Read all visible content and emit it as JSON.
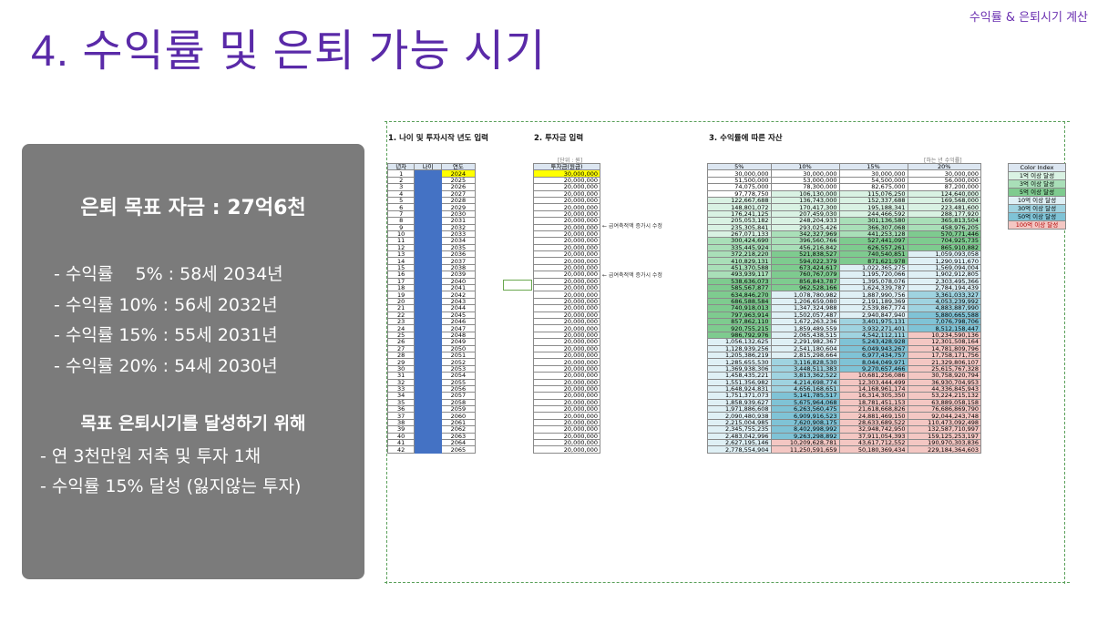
{
  "header": {
    "top_right": "수익률 & 은퇴시기 계산",
    "title": "4. 수익률 및 은퇴 가능 시기"
  },
  "panel": {
    "goal": "은퇴 목표 자금 : 27억6천",
    "rates": [
      "- 수익률    5% : 58세 2034년",
      "- 수익률 10% : 56세 2032년",
      "- 수익률 15% : 55세 2031년",
      "- 수익률 20% : 54세 2030년"
    ],
    "subhead": "목표 은퇴시기를 달성하기 위해",
    "plans": [
      "- 연 3천만원 저축 및 투자 1채",
      "- 수익률 15% 달성 (잃지않는 투자)"
    ]
  },
  "sheet": {
    "sec1": "1. 나이 및 투자시작 년도 입력",
    "sec2": "2. 투자금 입력",
    "sec3": "3. 수익률에 따른 자산",
    "unit2": "[단위 : 원]",
    "unit3": "[하는 년 수익률]",
    "h1": [
      "년차",
      "나이",
      "연도"
    ],
    "h2": "투자금(원금)",
    "h3": [
      "5%",
      "10%",
      "15%",
      "20%"
    ],
    "note": "← 급여축적액 증가시 수정",
    "color_index": {
      "title": "Color Index",
      "items": [
        {
          "label": "1억 이상 달성",
          "color": "#d9f2e3"
        },
        {
          "label": "3억 이상 달성",
          "color": "#a9dfb8"
        },
        {
          "label": "5억 이상 달성",
          "color": "#7ecb8f"
        },
        {
          "label": "10억 이상 달성",
          "color": "#dff0f5"
        },
        {
          "label": "30억 이상 달성",
          "color": "#9fd3e0"
        },
        {
          "label": "50억 이상 달성",
          "color": "#7fc3d6"
        },
        {
          "label": "100억 이상 달성",
          "color": "#f4c7c3"
        }
      ]
    },
    "invest_first": "30,000,000",
    "invest_rest": "20,000,000",
    "rows": [
      [
        "30,000,000",
        "30,000,000",
        "30,000,000",
        "30,000,000"
      ],
      [
        "51,500,000",
        "53,000,000",
        "54,500,000",
        "56,000,000"
      ],
      [
        "74,075,000",
        "78,300,000",
        "82,675,000",
        "87,200,000"
      ],
      [
        "97,778,750",
        "106,130,000",
        "115,076,250",
        "124,640,000"
      ],
      [
        "122,667,688",
        "136,743,000",
        "152,337,688",
        "169,568,000"
      ],
      [
        "148,801,072",
        "170,417,300",
        "195,188,341",
        "223,481,600"
      ],
      [
        "176,241,125",
        "207,459,030",
        "244,466,592",
        "288,177,920"
      ],
      [
        "205,053,182",
        "248,204,933",
        "301,136,580",
        "365,813,504"
      ],
      [
        "235,305,841",
        "293,025,426",
        "366,307,068",
        "458,976,205"
      ],
      [
        "267,071,133",
        "342,327,969",
        "441,253,128",
        "570,771,446"
      ],
      [
        "300,424,690",
        "396,560,766",
        "527,441,097",
        "704,925,735"
      ],
      [
        "335,445,924",
        "456,216,842",
        "626,557,261",
        "865,910,882"
      ],
      [
        "372,218,220",
        "521,838,527",
        "740,540,851",
        "1,059,093,058"
      ],
      [
        "410,829,131",
        "594,022,379",
        "871,621,978",
        "1,290,911,670"
      ],
      [
        "451,370,588",
        "673,424,617",
        "1,022,365,275",
        "1,569,094,004"
      ],
      [
        "493,939,117",
        "760,767,079",
        "1,195,720,066",
        "1,902,912,805"
      ],
      [
        "538,636,073",
        "856,843,787",
        "1,395,078,076",
        "2,303,495,366"
      ],
      [
        "585,567,877",
        "962,528,166",
        "1,624,339,787",
        "2,784,194,439"
      ],
      [
        "634,846,270",
        "1,078,780,982",
        "1,887,990,756",
        "3,361,033,327"
      ],
      [
        "686,588,584",
        "1,206,659,080",
        "2,191,189,369",
        "4,053,239,992"
      ],
      [
        "740,918,013",
        "1,347,324,988",
        "2,539,867,774",
        "4,883,887,990"
      ],
      [
        "797,963,914",
        "1,502,057,487",
        "2,940,847,940",
        "5,880,665,588"
      ],
      [
        "857,862,110",
        "1,672,263,236",
        "3,401,975,131",
        "7,076,798,706"
      ],
      [
        "920,755,215",
        "1,859,489,559",
        "3,932,271,401",
        "8,512,158,447"
      ],
      [
        "986,792,976",
        "2,065,438,515",
        "4,542,112,111",
        "10,234,590,136"
      ],
      [
        "1,056,132,625",
        "2,291,982,367",
        "5,243,428,928",
        "12,301,508,164"
      ],
      [
        "1,128,939,256",
        "2,541,180,604",
        "6,049,943,267",
        "14,781,809,796"
      ],
      [
        "1,205,386,219",
        "2,815,298,664",
        "6,977,434,757",
        "17,758,171,756"
      ],
      [
        "1,285,655,530",
        "3,116,828,530",
        "8,044,049,971",
        "21,329,806,107"
      ],
      [
        "1,369,938,306",
        "3,448,511,383",
        "9,270,657,466",
        "25,615,767,328"
      ],
      [
        "1,458,435,221",
        "3,813,362,522",
        "10,681,256,086",
        "30,758,920,794"
      ],
      [
        "1,551,356,982",
        "4,214,698,774",
        "12,303,444,499",
        "36,930,704,953"
      ],
      [
        "1,648,924,831",
        "4,656,168,651",
        "14,168,961,174",
        "44,336,845,943"
      ],
      [
        "1,751,371,073",
        "5,141,785,517",
        "16,314,305,350",
        "53,224,215,132"
      ],
      [
        "1,858,939,627",
        "5,675,964,068",
        "18,781,451,153",
        "63,889,058,158"
      ],
      [
        "1,971,886,608",
        "6,263,560,475",
        "21,618,668,826",
        "76,686,869,790"
      ],
      [
        "2,090,480,938",
        "6,909,916,523",
        "24,881,469,150",
        "92,044,243,748"
      ],
      [
        "2,215,004,985",
        "7,620,908,175",
        "28,633,689,522",
        "110,473,092,498"
      ],
      [
        "2,345,755,235",
        "8,402,998,992",
        "32,948,742,950",
        "132,587,710,997"
      ],
      [
        "2,483,042,996",
        "9,263,298,892",
        "37,911,054,393",
        "159,125,253,197"
      ],
      [
        "2,627,195,146",
        "10,209,628,781",
        "43,617,712,552",
        "190,970,303,836"
      ],
      [
        "2,778,554,904",
        "11,250,591,659",
        "50,180,369,434",
        "229,184,364,603"
      ]
    ]
  }
}
